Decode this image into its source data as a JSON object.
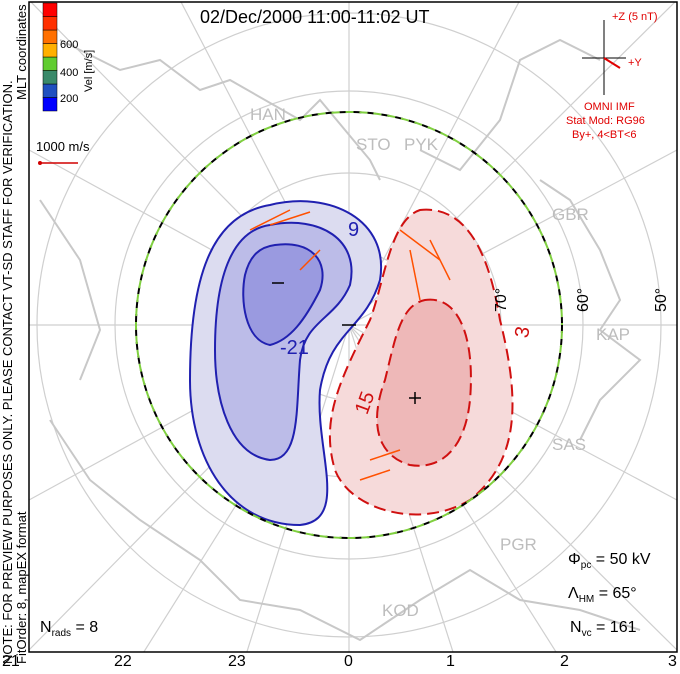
{
  "title": "02/Dec/2000 11:00-11:02 UT",
  "side_note": "NOTE: FOR PREVIEW PURPOSES ONLY. PLEASE CONTACT VT-SD STAFF FOR VERIFICATION.",
  "side_note2": "FitOrder: 8, mapEX format",
  "coords_label": "MLT coordinates",
  "colorbar": {
    "label": "Vel [m/s]",
    "ticks": [
      "600",
      "400",
      "200"
    ],
    "colors": [
      "#0000ff",
      "#2050c0",
      "#3a8a6a",
      "#60cc30",
      "#ffb000",
      "#ff7000",
      "#ff3000",
      "#ff0000"
    ]
  },
  "ref_vector": "1000 m/s",
  "imf": {
    "z_label": "+Z (5 nT)",
    "y_label": "+Y",
    "source": "OMNI IMF",
    "model": "Stat Mod: RG96",
    "condition": "By+, 4<BT<6"
  },
  "stations": [
    "HAN",
    "STO",
    "PYK",
    "GBR",
    "KAP",
    "SAS",
    "PGR",
    "KOD"
  ],
  "lat_labels": [
    "70°",
    "60°",
    "50°"
  ],
  "contour_labels": [
    "9",
    "-21",
    "3",
    "15"
  ],
  "stats": {
    "phi_sym": "Φ",
    "phi_sub": "pc",
    "phi_val": "= 50 kV",
    "lam_sym": "Λ",
    "lam_sub": "HM",
    "lam_val": "= 65°",
    "nvc_sym": "N",
    "nvc_sub": "vc",
    "nvc_val": "= 161",
    "nrads_sym": "N",
    "nrads_sub": "rads",
    "nrads_val": "= 8"
  },
  "mlt_labels": [
    "21",
    "22",
    "23",
    "0",
    "1",
    "2",
    "3"
  ]
}
